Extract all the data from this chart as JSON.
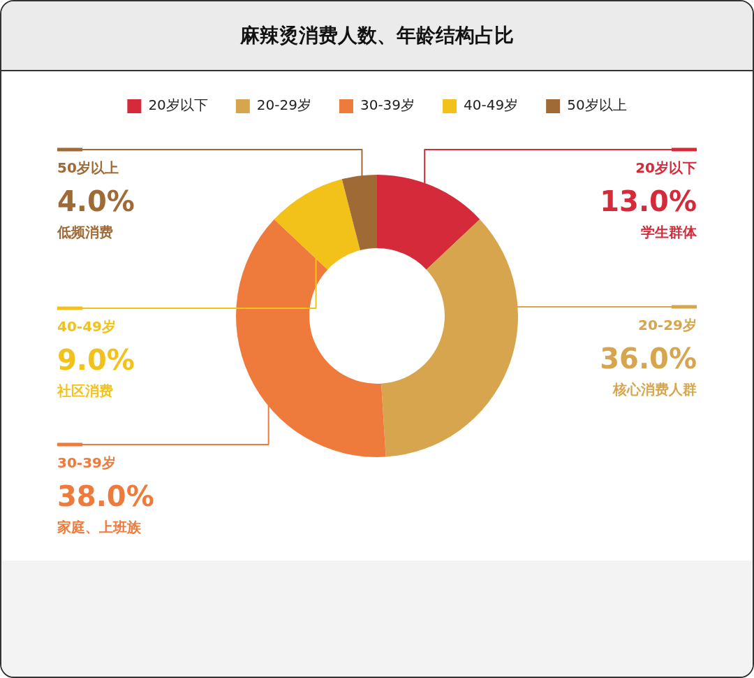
{
  "chart_data": {
    "type": "donut",
    "title": "麻辣烫消费人数、年龄结构占比",
    "categories": [
      "20岁以下",
      "20-29岁",
      "30-39岁",
      "40-49岁",
      "50岁以上"
    ],
    "values": [
      13,
      36,
      38,
      9,
      4
    ],
    "value_labels": [
      "13.0%",
      "36.0%",
      "38.0%",
      "9.0%",
      "4.0%"
    ],
    "colors": [
      "#d42a3a",
      "#d6a54e",
      "#ee7a3c",
      "#f2c21a",
      "#a06a36"
    ],
    "legend": "top",
    "annotations": [
      "学生群体",
      "核心消费人群",
      "家庭、上班族",
      "社区消费",
      "低频消费"
    ]
  }
}
